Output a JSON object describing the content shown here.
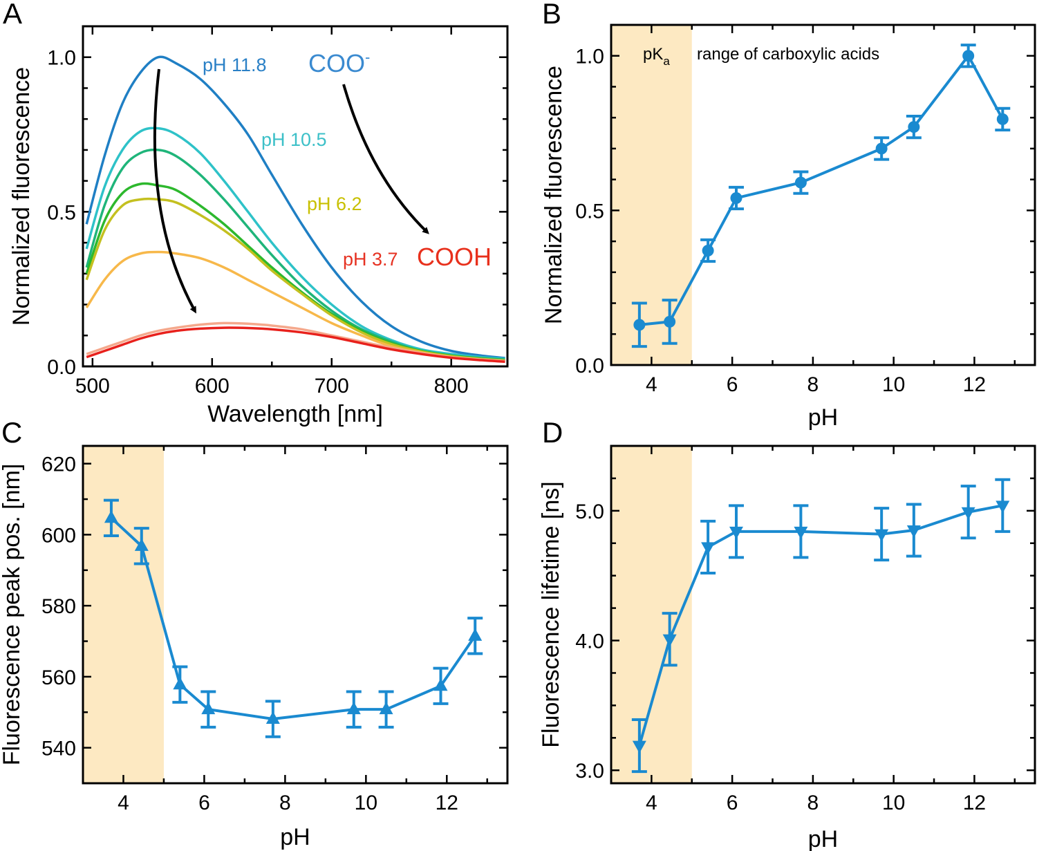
{
  "chart_data": [
    {
      "panel": "A",
      "type": "line",
      "xlabel": "Wavelength [nm]",
      "ylabel": "Normalized fluorescence",
      "xlim": [
        492,
        847
      ],
      "ylim": [
        0,
        1.1
      ],
      "xticks": [
        500,
        600,
        700,
        800
      ],
      "xtick_labels": [
        "500",
        "600",
        "700",
        "800"
      ],
      "x_minor_step": 50,
      "yticks": [
        0,
        0.5,
        1.0
      ],
      "ytick_labels": [
        "0.0",
        "0.5",
        "1.0"
      ],
      "y_minor_step": 0.1,
      "grid": false,
      "x": [
        495,
        510,
        525,
        540,
        555,
        570,
        590,
        610,
        630,
        650,
        675,
        700,
        725,
        750,
        775,
        800,
        825,
        845
      ],
      "series": [
        {
          "name": "pH 11.8",
          "color": "#1f7fc4",
          "values": [
            0.46,
            0.68,
            0.85,
            0.95,
            1.0,
            0.98,
            0.93,
            0.85,
            0.75,
            0.62,
            0.46,
            0.32,
            0.21,
            0.13,
            0.08,
            0.05,
            0.035,
            0.027
          ]
        },
        {
          "name": "pH 10.5",
          "color": "#2ec2c8",
          "values": [
            0.38,
            0.58,
            0.7,
            0.76,
            0.77,
            0.75,
            0.69,
            0.6,
            0.5,
            0.4,
            0.29,
            0.2,
            0.13,
            0.085,
            0.055,
            0.04,
            0.03,
            0.025
          ]
        },
        {
          "color": "#1fb57a",
          "values": [
            0.32,
            0.52,
            0.64,
            0.69,
            0.7,
            0.68,
            0.62,
            0.54,
            0.45,
            0.36,
            0.26,
            0.18,
            0.12,
            0.08,
            0.05,
            0.035,
            0.027,
            0.022
          ]
        },
        {
          "color": "#2db82d",
          "values": [
            0.3,
            0.47,
            0.56,
            0.59,
            0.585,
            0.57,
            0.52,
            0.46,
            0.39,
            0.32,
            0.24,
            0.17,
            0.115,
            0.075,
            0.05,
            0.035,
            0.025,
            0.02
          ]
        },
        {
          "name": "pH 6.2",
          "color": "#c4c020",
          "values": [
            0.28,
            0.44,
            0.52,
            0.54,
            0.54,
            0.53,
            0.49,
            0.44,
            0.38,
            0.31,
            0.235,
            0.165,
            0.11,
            0.072,
            0.048,
            0.033,
            0.024,
            0.019
          ]
        },
        {
          "color": "#f7b84a",
          "values": [
            0.19,
            0.28,
            0.34,
            0.365,
            0.37,
            0.365,
            0.35,
            0.32,
            0.28,
            0.24,
            0.19,
            0.14,
            0.1,
            0.065,
            0.045,
            0.03,
            0.022,
            0.017
          ]
        },
        {
          "color": "#f5a88c",
          "values": [
            0.04,
            0.06,
            0.08,
            0.1,
            0.115,
            0.125,
            0.135,
            0.14,
            0.138,
            0.132,
            0.12,
            0.1,
            0.08,
            0.06,
            0.043,
            0.03,
            0.022,
            0.017
          ]
        },
        {
          "name": "pH 3.7",
          "color": "#e8211c",
          "values": [
            0.03,
            0.05,
            0.07,
            0.09,
            0.105,
            0.115,
            0.122,
            0.125,
            0.124,
            0.12,
            0.11,
            0.095,
            0.075,
            0.055,
            0.04,
            0.028,
            0.02,
            0.015
          ]
        }
      ],
      "annotations": {
        "ph118": {
          "text": "pH 11.8",
          "color": "#2a80c6"
        },
        "coo": {
          "text": "COO",
          "sup": "-",
          "color": "#3a8ad0"
        },
        "ph105": {
          "text": "pH 10.5",
          "color": "#3cc0c8"
        },
        "ph62": {
          "text": "pH 6.2",
          "color": "#c8c000"
        },
        "ph37": {
          "text": "pH 3.7",
          "color": "#e63222"
        },
        "cooh": {
          "text": "COOH",
          "color": "#e8301c"
        }
      }
    },
    {
      "panel": "B",
      "type": "line",
      "xlabel": "pH",
      "ylabel": "Normalized fluorescence",
      "xlim": [
        3,
        13.5
      ],
      "ylim": [
        0,
        1.1
      ],
      "xticks": [
        4,
        6,
        8,
        10,
        12
      ],
      "xtick_labels": [
        "4",
        "6",
        "8",
        "10",
        "12"
      ],
      "x_minor_step": 1,
      "yticks": [
        0,
        0.5,
        1.0
      ],
      "ytick_labels": [
        "0.0",
        "0.5",
        "1.0"
      ],
      "y_minor_step": 0.1,
      "grid": false,
      "marker": "circle",
      "shaded_region": {
        "x": [
          3,
          5
        ],
        "color": "#fde9c2"
      },
      "annotations": {
        "pka": {
          "text": "pK",
          "sub": "a"
        },
        "range": {
          "text": "range of carboxylic acids"
        }
      },
      "series": [
        {
          "color": "#1a8ad0",
          "x": [
            3.7,
            4.45,
            5.4,
            6.1,
            7.7,
            9.7,
            10.5,
            11.85,
            12.7
          ],
          "values": [
            0.13,
            0.14,
            0.37,
            0.54,
            0.59,
            0.7,
            0.77,
            1.0,
            0.795
          ],
          "errors": [
            0.07,
            0.07,
            0.035,
            0.035,
            0.035,
            0.035,
            0.035,
            0.035,
            0.035
          ]
        }
      ]
    },
    {
      "panel": "C",
      "type": "line",
      "xlabel": "pH",
      "ylabel": "Fluorescence peak pos. [nm]",
      "xlim": [
        3,
        13.5
      ],
      "ylim": [
        530,
        625
      ],
      "xticks": [
        4,
        6,
        8,
        10,
        12
      ],
      "xtick_labels": [
        "4",
        "6",
        "8",
        "10",
        "12"
      ],
      "x_minor_step": 1,
      "yticks": [
        540,
        560,
        580,
        600,
        620
      ],
      "ytick_labels": [
        "540",
        "560",
        "580",
        "600",
        "620"
      ],
      "y_minor_step": 10,
      "grid": false,
      "marker": "triangle-up",
      "shaded_region": {
        "x": [
          3,
          5
        ],
        "color": "#fde9c2"
      },
      "series": [
        {
          "color": "#1a8ad0",
          "x": [
            3.7,
            4.45,
            5.4,
            6.1,
            7.7,
            9.7,
            10.5,
            11.85,
            12.7
          ],
          "values": [
            604.7,
            596.8,
            557.8,
            550.8,
            548.1,
            550.8,
            550.8,
            557.4,
            571.5
          ],
          "errors": [
            5,
            5,
            5,
            5,
            5,
            5,
            5,
            5,
            5
          ]
        }
      ]
    },
    {
      "panel": "D",
      "type": "line",
      "xlabel": "pH",
      "ylabel": "Fluorescence lifetime [ns]",
      "xlim": [
        3,
        13.5
      ],
      "ylim": [
        2.9,
        5.5
      ],
      "xticks": [
        4,
        6,
        8,
        10,
        12
      ],
      "xtick_labels": [
        "4",
        "6",
        "8",
        "10",
        "12"
      ],
      "x_minor_step": 1,
      "yticks": [
        3.0,
        4.0,
        5.0
      ],
      "ytick_labels": [
        "3.0",
        "4.0",
        "5.0"
      ],
      "y_minor_step": 0.25,
      "grid": false,
      "marker": "triangle-down",
      "shaded_region": {
        "x": [
          3,
          5
        ],
        "color": "#fde9c2"
      },
      "series": [
        {
          "color": "#1a8ad0",
          "x": [
            3.7,
            4.45,
            5.4,
            6.1,
            7.7,
            9.7,
            10.5,
            11.85,
            12.7
          ],
          "values": [
            3.19,
            4.01,
            4.72,
            4.84,
            4.84,
            4.82,
            4.85,
            4.99,
            5.04
          ],
          "errors": [
            0.2,
            0.2,
            0.2,
            0.2,
            0.2,
            0.2,
            0.2,
            0.2,
            0.2
          ]
        }
      ]
    }
  ]
}
